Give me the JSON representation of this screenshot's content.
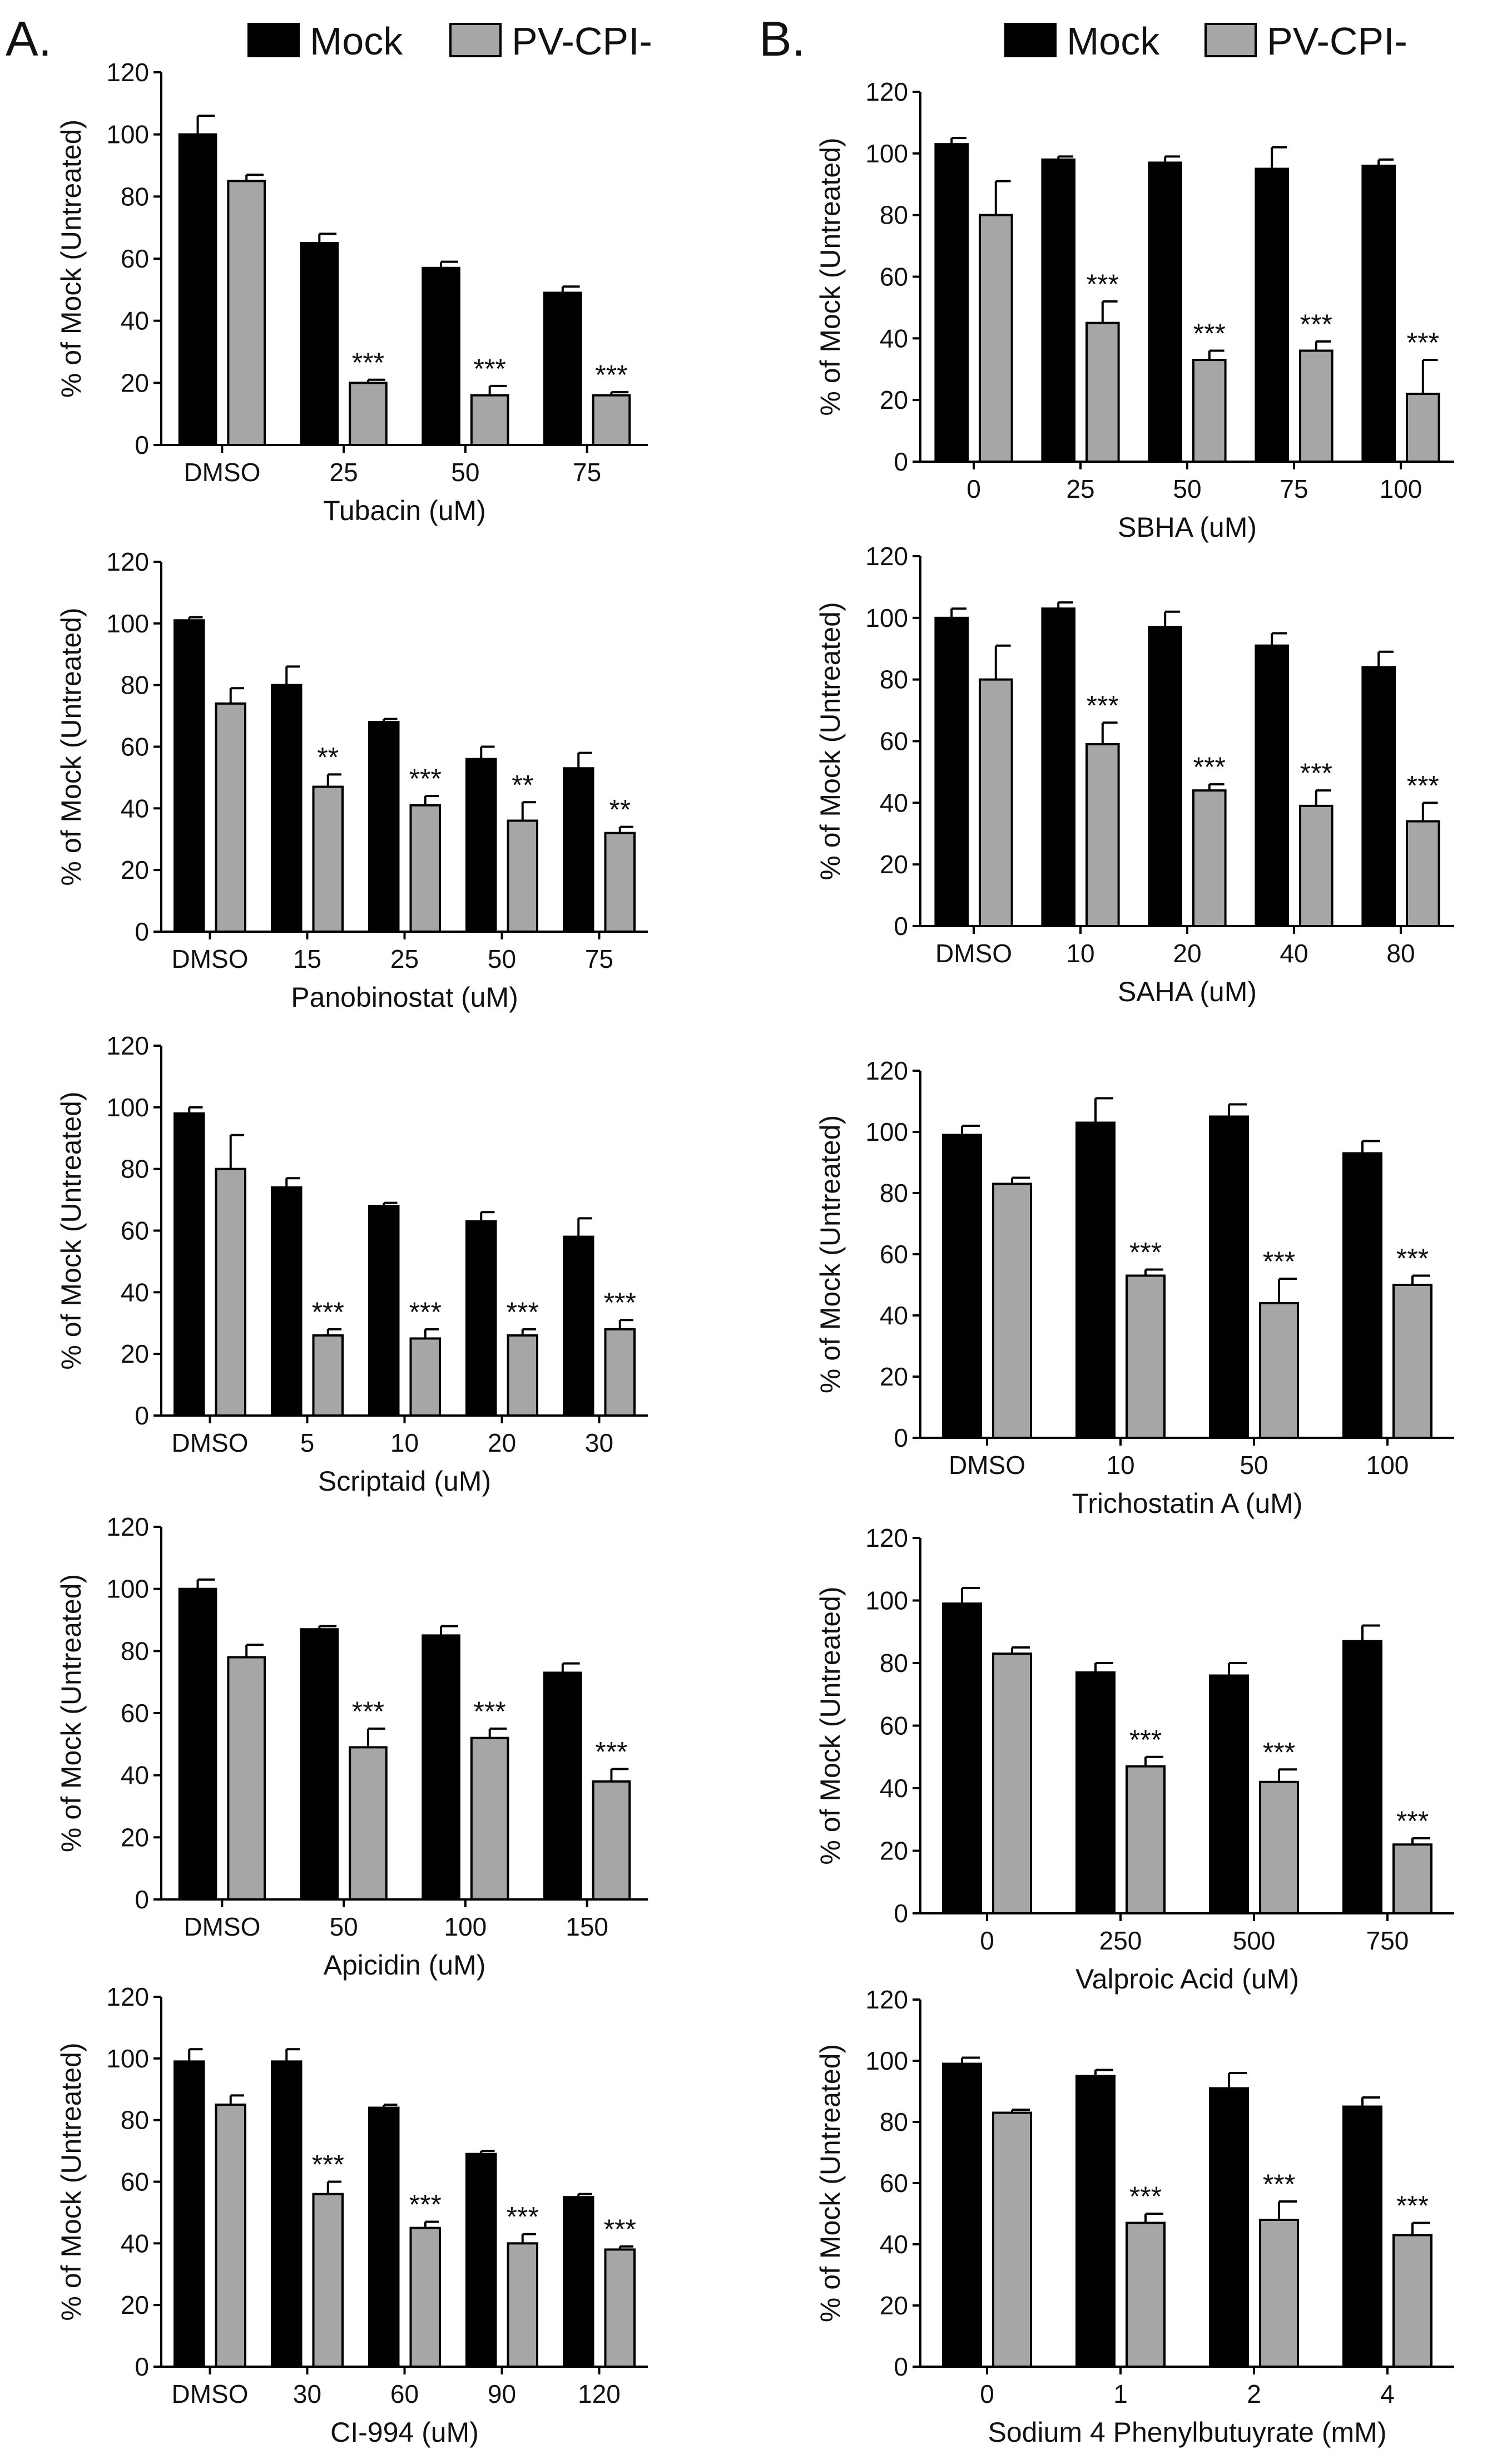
{
  "figure": {
    "panel_labels": [
      "A.",
      "B."
    ],
    "legend": [
      {
        "label": "Mock",
        "color": "#000000"
      },
      {
        "label": "PV-CPI-",
        "color": "#a6a6a6"
      }
    ],
    "colors": {
      "mock": "#000000",
      "pv": "#a6a6a6",
      "axis": "#000000"
    }
  },
  "chart_data": [
    {
      "type": "bar",
      "panel": "A",
      "xlabel": "Tubacin (uM)",
      "ylabel": "% of Mock (Untreated)",
      "ylim": [
        0,
        120
      ],
      "yticks": [
        0,
        20,
        40,
        60,
        80,
        100,
        120
      ],
      "categories": [
        "DMSO",
        "25",
        "50",
        "75"
      ],
      "series": [
        {
          "name": "Mock",
          "values": [
            100,
            65,
            57,
            49
          ],
          "errors": [
            6,
            3,
            2,
            2
          ]
        },
        {
          "name": "PV-CPI-",
          "values": [
            85,
            20,
            16,
            16
          ],
          "errors": [
            2,
            1,
            3,
            1
          ]
        }
      ],
      "annotations": [
        "",
        "***",
        "***",
        "***"
      ]
    },
    {
      "type": "bar",
      "panel": "B",
      "xlabel": "SBHA (uM)",
      "ylabel": "% of Mock (Untreated)",
      "ylim": [
        0,
        120
      ],
      "yticks": [
        0,
        20,
        40,
        60,
        80,
        100,
        120
      ],
      "categories": [
        "0",
        "25",
        "50",
        "75",
        "100"
      ],
      "series": [
        {
          "name": "Mock",
          "values": [
            103,
            98,
            97,
            95,
            96
          ],
          "errors": [
            2,
            1,
            2,
            7,
            2
          ]
        },
        {
          "name": "PV-CPI-",
          "values": [
            80,
            45,
            33,
            36,
            22
          ],
          "errors": [
            11,
            7,
            3,
            3,
            11
          ]
        }
      ],
      "annotations": [
        "",
        "***",
        "***",
        "***",
        "***"
      ]
    },
    {
      "type": "bar",
      "panel": "A",
      "xlabel": "Panobinostat (uM)",
      "ylabel": "% of Mock (Untreated)",
      "ylim": [
        0,
        120
      ],
      "yticks": [
        0,
        20,
        40,
        60,
        80,
        100,
        120
      ],
      "categories": [
        "DMSO",
        "15",
        "25",
        "50",
        "75"
      ],
      "series": [
        {
          "name": "Mock",
          "values": [
            101,
            80,
            68,
            56,
            53
          ],
          "errors": [
            1,
            6,
            1,
            4,
            5
          ]
        },
        {
          "name": "PV-CPI-",
          "values": [
            74,
            47,
            41,
            36,
            32
          ],
          "errors": [
            5,
            4,
            3,
            6,
            2
          ]
        }
      ],
      "annotations": [
        "",
        "**",
        "***",
        "**",
        "**"
      ]
    },
    {
      "type": "bar",
      "panel": "B",
      "xlabel": "SAHA (uM)",
      "ylabel": "% of Mock (Untreated)",
      "ylim": [
        0,
        120
      ],
      "yticks": [
        0,
        20,
        40,
        60,
        80,
        100,
        120
      ],
      "categories": [
        "DMSO",
        "10",
        "20",
        "40",
        "80"
      ],
      "series": [
        {
          "name": "Mock",
          "values": [
            100,
            103,
            97,
            91,
            84
          ],
          "errors": [
            3,
            2,
            5,
            4,
            5
          ]
        },
        {
          "name": "PV-CPI-",
          "values": [
            80,
            59,
            44,
            39,
            34
          ],
          "errors": [
            11,
            7,
            2,
            5,
            6
          ]
        }
      ],
      "annotations": [
        "",
        "***",
        "***",
        "***",
        "***"
      ]
    },
    {
      "type": "bar",
      "panel": "A",
      "xlabel": "Scriptaid (uM)",
      "ylabel": "% of Mock (Untreated)",
      "ylim": [
        0,
        120
      ],
      "yticks": [
        0,
        20,
        40,
        60,
        80,
        100,
        120
      ],
      "categories": [
        "DMSO",
        "5",
        "10",
        "20",
        "30"
      ],
      "series": [
        {
          "name": "Mock",
          "values": [
            98,
            74,
            68,
            63,
            58
          ],
          "errors": [
            2,
            3,
            1,
            3,
            6
          ]
        },
        {
          "name": "PV-CPI-",
          "values": [
            80,
            26,
            25,
            26,
            28
          ],
          "errors": [
            11,
            2,
            3,
            2,
            3
          ]
        }
      ],
      "annotations": [
        "",
        "***",
        "***",
        "***",
        "***"
      ]
    },
    {
      "type": "bar",
      "panel": "B",
      "xlabel": "Trichostatin A (uM)",
      "ylabel": "% of Mock (Untreated)",
      "ylim": [
        0,
        120
      ],
      "yticks": [
        0,
        20,
        40,
        60,
        80,
        100,
        120
      ],
      "categories": [
        "DMSO",
        "10",
        "50",
        "100"
      ],
      "series": [
        {
          "name": "Mock",
          "values": [
            99,
            103,
            105,
            93
          ],
          "errors": [
            3,
            8,
            4,
            4
          ]
        },
        {
          "name": "PV-CPI-",
          "values": [
            83,
            53,
            44,
            50
          ],
          "errors": [
            2,
            2,
            8,
            3
          ]
        }
      ],
      "annotations": [
        "",
        "***",
        "***",
        "***"
      ]
    },
    {
      "type": "bar",
      "panel": "A",
      "xlabel": "Apicidin (uM)",
      "ylabel": "% of Mock (Untreated)",
      "ylim": [
        0,
        120
      ],
      "yticks": [
        0,
        20,
        40,
        60,
        80,
        100,
        120
      ],
      "categories": [
        "DMSO",
        "50",
        "100",
        "150"
      ],
      "series": [
        {
          "name": "Mock",
          "values": [
            100,
            87,
            85,
            73
          ],
          "errors": [
            3,
            1,
            3,
            3
          ]
        },
        {
          "name": "PV-CPI-",
          "values": [
            78,
            49,
            52,
            38
          ],
          "errors": [
            4,
            6,
            3,
            4
          ]
        }
      ],
      "annotations": [
        "",
        "***",
        "***",
        "***"
      ]
    },
    {
      "type": "bar",
      "panel": "B",
      "xlabel": "Valproic Acid (uM)",
      "ylabel": "% of Mock (Untreated)",
      "ylim": [
        0,
        120
      ],
      "yticks": [
        0,
        20,
        40,
        60,
        80,
        100,
        120
      ],
      "categories": [
        "0",
        "250",
        "500",
        "750"
      ],
      "series": [
        {
          "name": "Mock",
          "values": [
            99,
            77,
            76,
            87
          ],
          "errors": [
            5,
            3,
            4,
            5
          ]
        },
        {
          "name": "PV-CPI-",
          "values": [
            83,
            47,
            42,
            22
          ],
          "errors": [
            2,
            3,
            4,
            2
          ]
        }
      ],
      "annotations": [
        "",
        "***",
        "***",
        "***"
      ]
    },
    {
      "type": "bar",
      "panel": "A",
      "xlabel": "CI-994 (uM)",
      "ylabel": "% of Mock (Untreated)",
      "ylim": [
        0,
        120
      ],
      "yticks": [
        0,
        20,
        40,
        60,
        80,
        100,
        120
      ],
      "categories": [
        "DMSO",
        "30",
        "60",
        "90",
        "120"
      ],
      "series": [
        {
          "name": "Mock",
          "values": [
            99,
            99,
            84,
            69,
            55
          ],
          "errors": [
            4,
            4,
            1,
            1,
            1
          ]
        },
        {
          "name": "PV-CPI-",
          "values": [
            85,
            56,
            45,
            40,
            38
          ],
          "errors": [
            3,
            4,
            2,
            3,
            1
          ]
        }
      ],
      "annotations": [
        "",
        "***",
        "***",
        "***",
        "***"
      ]
    },
    {
      "type": "bar",
      "panel": "B",
      "xlabel": "Sodium 4 Phenylbutuyrate (mM)",
      "ylabel": "% of Mock (Untreated)",
      "ylim": [
        0,
        120
      ],
      "yticks": [
        0,
        20,
        40,
        60,
        80,
        100,
        120
      ],
      "categories": [
        "0",
        "1",
        "2",
        "4"
      ],
      "series": [
        {
          "name": "Mock",
          "values": [
            99,
            95,
            91,
            85
          ],
          "errors": [
            2,
            2,
            5,
            3
          ]
        },
        {
          "name": "PV-CPI-",
          "values": [
            83,
            47,
            48,
            43
          ],
          "errors": [
            1,
            3,
            6,
            4
          ]
        }
      ],
      "annotations": [
        "",
        "***",
        "***",
        "***"
      ]
    }
  ]
}
